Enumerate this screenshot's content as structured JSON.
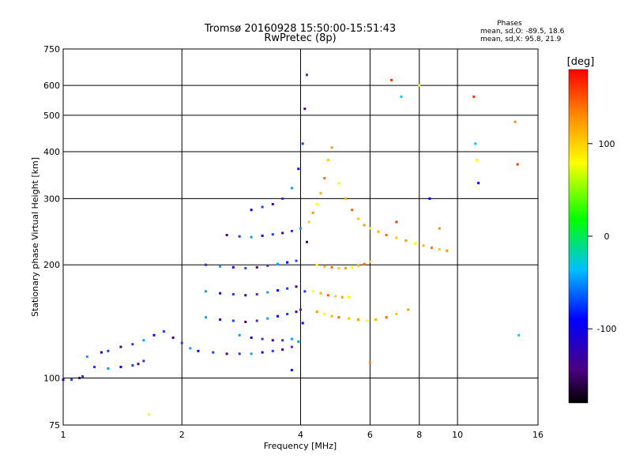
{
  "title_line1": "Tromsø 20160928 15:50:00-15:51:43",
  "title_line2": "RwPretec (8p)",
  "phases": {
    "header": "Phases",
    "o_line": "mean, sd,O: -89.5, 18.6",
    "x_line": "mean, sd,X:  95.8, 21.9"
  },
  "chart_data": {
    "type": "scatter",
    "xlabel": "Frequency [MHz]",
    "ylabel": "Stationary phase Virtual Height [km]",
    "x_scale": "log",
    "y_scale": "log",
    "xlim": [
      1,
      16
    ],
    "ylim": [
      75,
      750
    ],
    "x_ticks": [
      1,
      2,
      4,
      6,
      8,
      10,
      16
    ],
    "y_ticks": [
      75,
      100,
      200,
      300,
      400,
      500,
      600,
      750
    ],
    "grid": true,
    "colorbar": {
      "label": "[deg]",
      "range": [
        -180,
        180
      ],
      "ticks": [
        100,
        0,
        -100
      ],
      "colormap": [
        "#000000",
        "#4b0082",
        "#0000ff",
        "#00bfff",
        "#00ff00",
        "#ffff00",
        "#ff8c00",
        "#ff0000"
      ]
    },
    "series": [
      {
        "mode": "O",
        "phase_mean_deg": -89.5,
        "phase_sd_deg": 18.6,
        "x": [
          1.0,
          1.05,
          1.1,
          1.12,
          1.15,
          1.25,
          1.3,
          1.4,
          1.5,
          1.6,
          1.7,
          1.8,
          1.9,
          2.0,
          2.1,
          2.2,
          2.4,
          2.6,
          2.8,
          3.0,
          3.2,
          3.4,
          3.6,
          3.8,
          3.95,
          4.05,
          4.1,
          4.15,
          1.2,
          1.3,
          1.4,
          1.5,
          1.55,
          1.6,
          2.3,
          2.5,
          2.7,
          2.9,
          3.1,
          3.3,
          3.5,
          3.7,
          3.9,
          4.0,
          2.3,
          2.5,
          2.7,
          2.9,
          3.1,
          3.3,
          3.5,
          3.7,
          3.9,
          2.3,
          2.5,
          2.7,
          2.9,
          3.1,
          3.3,
          3.5,
          3.7,
          3.9,
          2.6,
          2.8,
          3.0,
          3.2,
          3.4,
          3.6,
          3.8,
          4.0,
          3.0,
          3.2,
          3.4,
          3.6,
          3.8,
          3.95,
          4.05,
          4.1,
          4.15,
          2.8,
          3.0,
          3.2,
          3.4,
          3.6,
          3.8
        ],
        "y": [
          99,
          99,
          100,
          101,
          114,
          117,
          118,
          121,
          123,
          126,
          130,
          133,
          128,
          124,
          120,
          118,
          117,
          116,
          116,
          116,
          117,
          118,
          119,
          121,
          125,
          140,
          170,
          230,
          107,
          106,
          107,
          108,
          109,
          111,
          145,
          143,
          142,
          141,
          142,
          144,
          146,
          148,
          150,
          152,
          170,
          168,
          167,
          166,
          167,
          169,
          171,
          173,
          175,
          200,
          198,
          197,
          196,
          197,
          199,
          201,
          203,
          205,
          240,
          238,
          237,
          239,
          241,
          243,
          246,
          250,
          280,
          285,
          290,
          300,
          320,
          360,
          420,
          520,
          640,
          130,
          128,
          127,
          126,
          126,
          127
        ]
      },
      {
        "mode": "X",
        "phase_mean_deg": 95.8,
        "phase_sd_deg": 21.9,
        "x": [
          4.2,
          4.3,
          4.4,
          4.5,
          4.6,
          4.7,
          4.8,
          5.0,
          5.2,
          5.4,
          5.6,
          5.8,
          6.0,
          6.3,
          6.6,
          7.0,
          7.4,
          7.8,
          8.2,
          8.6,
          9.0,
          9.4,
          4.4,
          4.6,
          4.8,
          5.0,
          5.2,
          5.4,
          5.6,
          5.8,
          6.0,
          4.4,
          4.6,
          4.8,
          5.0,
          5.3,
          5.6,
          5.9,
          6.2,
          6.6,
          7.0,
          7.5,
          4.3,
          4.5,
          4.7,
          4.9,
          5.1,
          5.3
        ],
        "y": [
          260,
          275,
          290,
          310,
          340,
          380,
          410,
          330,
          300,
          280,
          265,
          255,
          250,
          245,
          240,
          236,
          232,
          228,
          225,
          222,
          220,
          218,
          200,
          198,
          197,
          196,
          196,
          197,
          199,
          201,
          204,
          150,
          148,
          146,
          145,
          144,
          143,
          142,
          143,
          145,
          148,
          152,
          170,
          168,
          166,
          165,
          164,
          164
        ]
      },
      {
        "mode": "scattered",
        "x": [
          6.8,
          7.2,
          8.0,
          8.5,
          9.0,
          11.0,
          11.1,
          11.2,
          11.3,
          14.0,
          14.2,
          14.3,
          1.65,
          3.8,
          6.0,
          7.0
        ],
        "y": [
          620,
          560,
          600,
          300,
          250,
          560,
          420,
          380,
          330,
          480,
          370,
          130,
          80,
          105,
          110,
          260
        ]
      }
    ]
  }
}
